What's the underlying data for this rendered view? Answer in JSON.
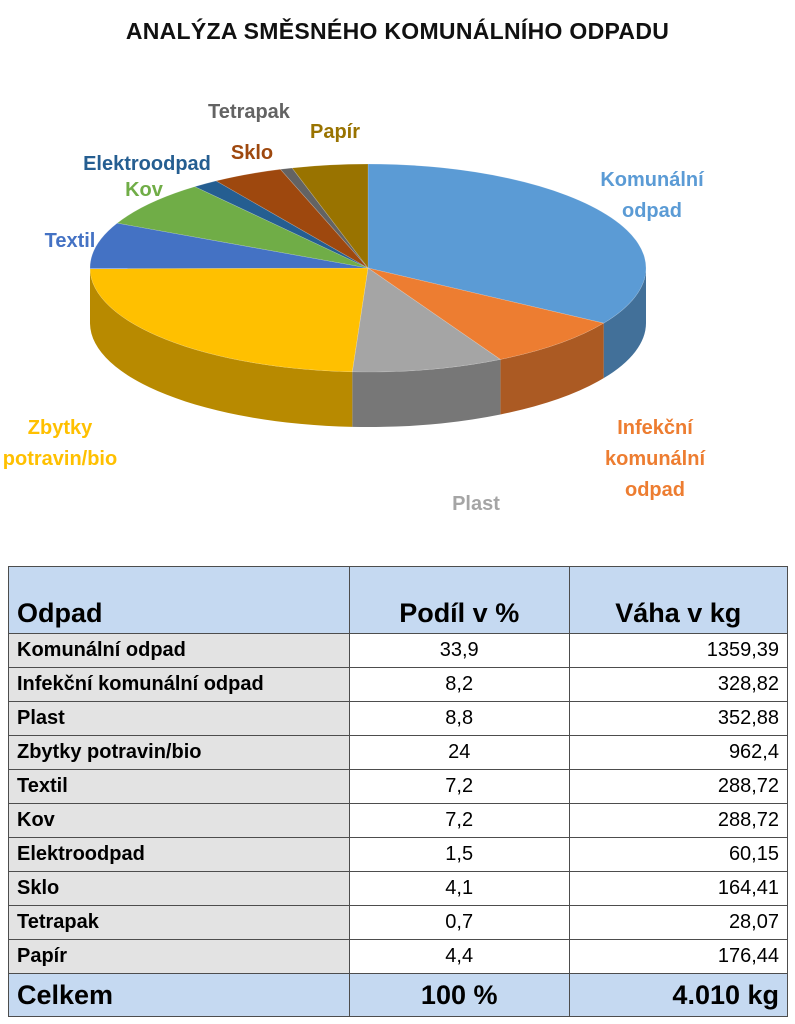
{
  "chart_data": {
    "type": "pie",
    "title": "ANALÝZA SMĚSNÉHO KOMUNÁLNÍHO ODPADU",
    "slices": [
      {
        "label": "Komunální odpad",
        "display": [
          "Komunální",
          "odpad"
        ],
        "value": 33.9,
        "color": "#5b9bd5"
      },
      {
        "label": "Infekční komunální odpad",
        "display": [
          "Infekční",
          "komunální",
          "odpad"
        ],
        "value": 8.2,
        "color": "#ed7d31"
      },
      {
        "label": "Plast",
        "display": [
          "Plast"
        ],
        "value": 8.8,
        "color": "#a5a5a5"
      },
      {
        "label": "Zbytky potravin/bio",
        "display": [
          "Zbytky",
          "potravin/bio"
        ],
        "value": 24,
        "color": "#ffc000"
      },
      {
        "label": "Textil",
        "display": [
          "Textil"
        ],
        "value": 7.2,
        "color": "#4472c4"
      },
      {
        "label": "Kov",
        "display": [
          "Kov"
        ],
        "value": 7.2,
        "color": "#70ad47"
      },
      {
        "label": "Elektroodpad",
        "display": [
          "Elektroodpad"
        ],
        "value": 1.5,
        "color": "#255e91"
      },
      {
        "label": "Sklo",
        "display": [
          "Sklo"
        ],
        "value": 4.1,
        "color": "#9e480e"
      },
      {
        "label": "Tetrapak",
        "display": [
          "Tetrapak"
        ],
        "value": 0.7,
        "color": "#636363"
      },
      {
        "label": "Papír",
        "display": [
          "Papír"
        ],
        "value": 4.4,
        "color": "#997300"
      }
    ]
  },
  "table": {
    "headers": [
      "Odpad",
      "Podíl v %",
      "Váha v kg"
    ],
    "rows": [
      [
        "Komunální odpad",
        "33,9",
        "1359,39"
      ],
      [
        "Infekční komunální odpad",
        "8,2",
        "328,82"
      ],
      [
        "Plast",
        "8,8",
        "352,88"
      ],
      [
        "Zbytky potravin/bio",
        "24",
        "962,4"
      ],
      [
        "Textil",
        "7,2",
        "288,72"
      ],
      [
        "Kov",
        "7,2",
        "288,72"
      ],
      [
        "Elektroodpad",
        "1,5",
        "60,15"
      ],
      [
        "Sklo",
        "4,1",
        "164,41"
      ],
      [
        "Tetrapak",
        "0,7",
        "28,07"
      ],
      [
        "Papír",
        "4,4",
        "176,44"
      ]
    ],
    "total": [
      "Celkem",
      "100 %",
      "4.010 kg"
    ]
  },
  "colors": {
    "header_bg": "#c5d9f1",
    "name_col_bg": "#e3e3e3"
  }
}
